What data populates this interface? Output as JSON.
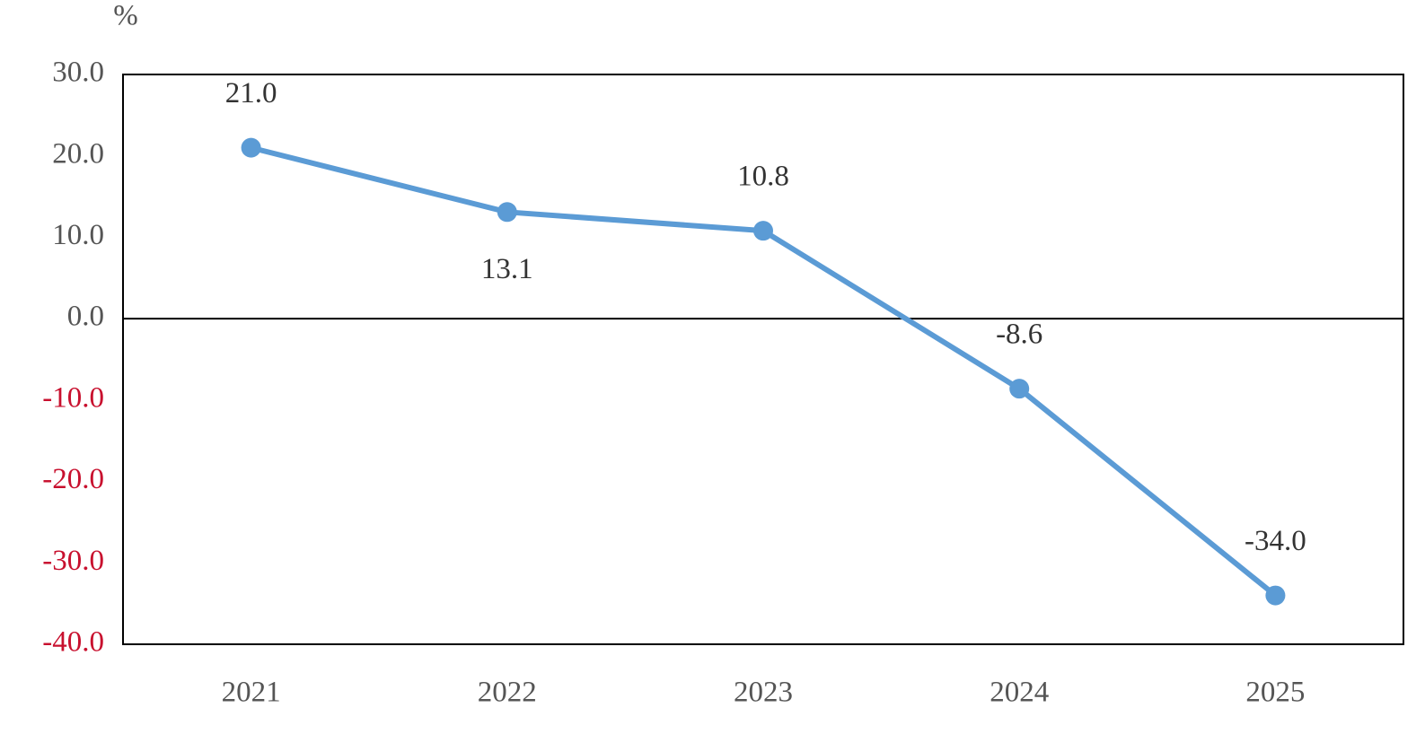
{
  "chart_data": {
    "type": "line",
    "y_label": "%",
    "categories": [
      "2021",
      "2022",
      "2023",
      "2024",
      "2025"
    ],
    "series": [
      {
        "color": "#5b9bd5",
        "values": [
          21.0,
          13.1,
          10.8,
          -8.6,
          -34.0
        ],
        "value_labels": [
          "21.0",
          "13.1",
          "10.8",
          "-8.6",
          "-34.0"
        ]
      }
    ],
    "ylim": [
      -40,
      30
    ],
    "yticks": [
      {
        "value": 30,
        "label": "30.0"
      },
      {
        "value": 20,
        "label": "20.0"
      },
      {
        "value": 10,
        "label": "10.0"
      },
      {
        "value": 0,
        "label": "0.0"
      },
      {
        "value": -10,
        "label": "-10.0"
      },
      {
        "value": -20,
        "label": "-20.0"
      },
      {
        "value": -30,
        "label": "-30.0"
      },
      {
        "value": -40,
        "label": "-40.0"
      }
    ],
    "grid": false
  }
}
